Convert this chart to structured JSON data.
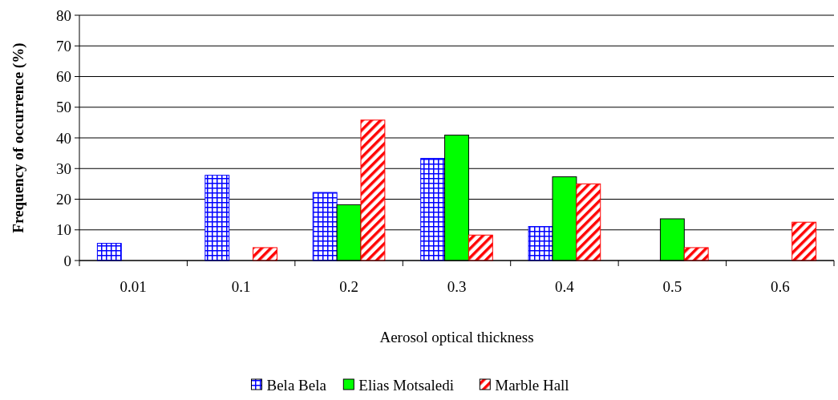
{
  "chart_data": {
    "type": "bar",
    "xlabel": "Aerosol optical thickness",
    "ylabel": "Frequency of occurrence (%)",
    "categories": [
      "0.01",
      "0.1",
      "0.2",
      "0.3",
      "0.4",
      "0.5",
      "0.6"
    ],
    "series": [
      {
        "name": "Bela Bela",
        "color": "#0000ff",
        "values": [
          5.6,
          27.8,
          22.2,
          33.3,
          11.1,
          null,
          null
        ]
      },
      {
        "name": "Elias Motsaledi",
        "color": "#00ff00",
        "values": [
          null,
          null,
          18.2,
          40.9,
          27.3,
          13.6,
          null
        ]
      },
      {
        "name": "Marble Hall",
        "color": "#ff0000",
        "values": [
          null,
          4.2,
          45.8,
          8.3,
          25,
          4.2,
          12.5
        ]
      }
    ],
    "ylim": [
      0,
      80
    ],
    "yticks": [
      0,
      10,
      20,
      30,
      40,
      50,
      60,
      70,
      80
    ],
    "grid": "y",
    "legend": "bottom"
  }
}
